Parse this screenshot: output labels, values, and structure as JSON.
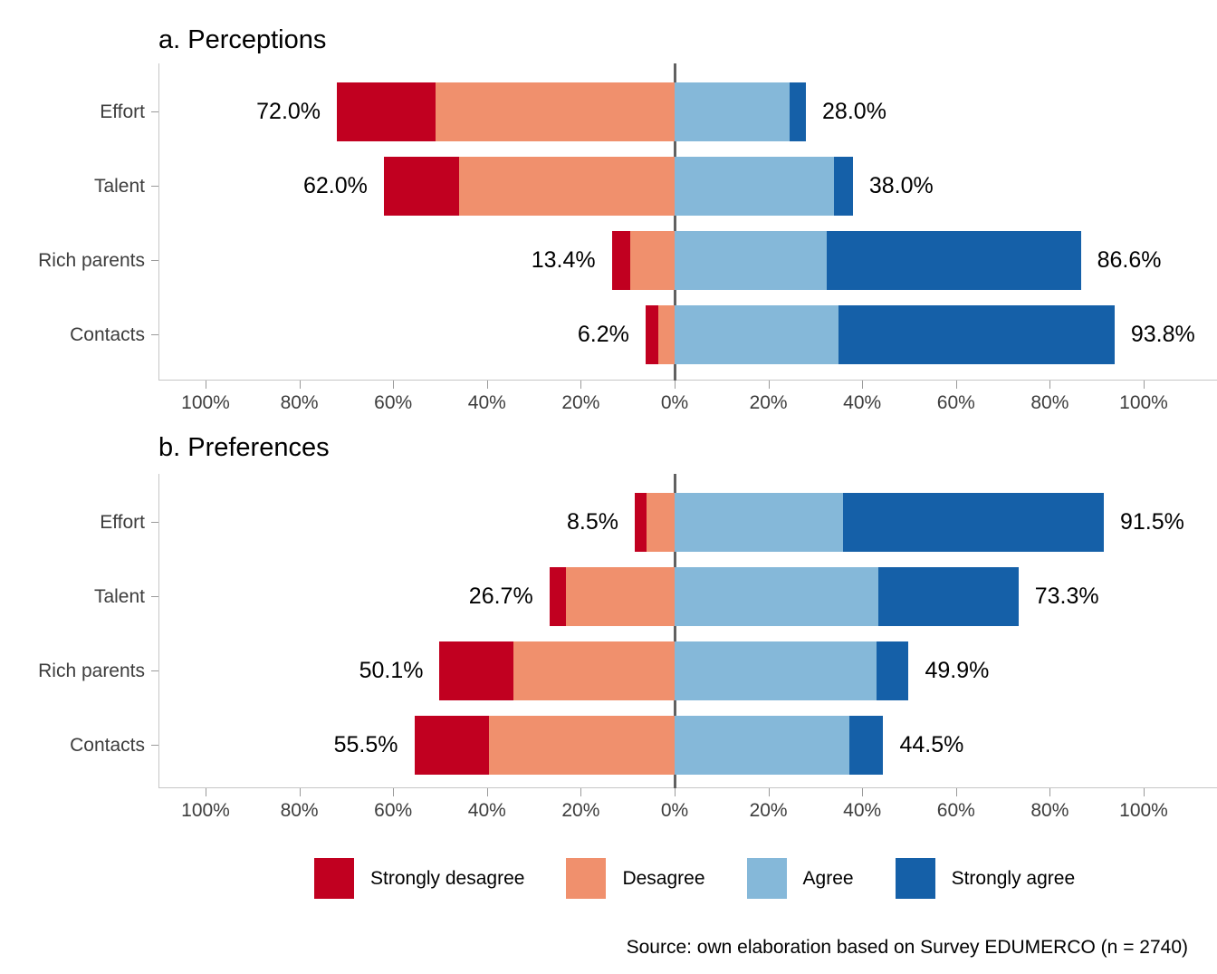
{
  "chart_data": [
    {
      "type": "bar",
      "subtype": "diverging-stacked-likert",
      "title": "a. Perceptions",
      "categories": [
        "Effort",
        "Talent",
        "Rich parents",
        "Contacts"
      ],
      "series": [
        {
          "name": "Strongly desagree",
          "values": [
            21.0,
            16.0,
            3.9,
            2.7
          ]
        },
        {
          "name": "Desagree",
          "values": [
            51.0,
            46.0,
            9.5,
            3.5
          ]
        },
        {
          "name": "Agree",
          "values": [
            24.5,
            34.0,
            32.5,
            35.0
          ]
        },
        {
          "name": "Strongly agree",
          "values": [
            3.5,
            4.0,
            54.1,
            58.8
          ]
        }
      ],
      "totals_left": [
        "72.0%",
        "62.0%",
        "13.4%",
        "6.2%"
      ],
      "totals_right": [
        "28.0%",
        "38.0%",
        "86.6%",
        "93.8%"
      ],
      "xlim": [
        -100,
        100
      ],
      "tick_values": [
        -100,
        -80,
        -60,
        -40,
        -20,
        0,
        20,
        40,
        60,
        80,
        100
      ],
      "tick_labels": [
        "100%",
        "80%",
        "60%",
        "40%",
        "20%",
        "0%",
        "20%",
        "40%",
        "60%",
        "80%",
        "100%"
      ],
      "grid": false
    },
    {
      "type": "bar",
      "subtype": "diverging-stacked-likert",
      "title": "b. Preferences",
      "categories": [
        "Effort",
        "Talent",
        "Rich parents",
        "Contacts"
      ],
      "series": [
        {
          "name": "Strongly desagree",
          "values": [
            2.5,
            3.5,
            15.7,
            16.0
          ]
        },
        {
          "name": "Desagree",
          "values": [
            6.0,
            23.2,
            34.4,
            39.5
          ]
        },
        {
          "name": "Agree",
          "values": [
            36.0,
            43.5,
            43.0,
            37.3
          ]
        },
        {
          "name": "Strongly agree",
          "values": [
            55.5,
            29.8,
            6.9,
            7.2
          ]
        }
      ],
      "totals_left": [
        "8.5%",
        "26.7%",
        "50.1%",
        "55.5%"
      ],
      "totals_right": [
        "91.5%",
        "73.3%",
        "49.9%",
        "44.5%"
      ],
      "xlim": [
        -100,
        100
      ],
      "tick_values": [
        -100,
        -80,
        -60,
        -40,
        -20,
        0,
        20,
        40,
        60,
        80,
        100
      ],
      "tick_labels": [
        "100%",
        "80%",
        "60%",
        "40%",
        "20%",
        "0%",
        "20%",
        "40%",
        "60%",
        "80%",
        "100%"
      ],
      "grid": false
    }
  ],
  "legend": [
    {
      "label": "Strongly desagree",
      "color": "#c10020"
    },
    {
      "label": "Desagree",
      "color": "#f0906d"
    },
    {
      "label": "Agree",
      "color": "#85b8d9"
    },
    {
      "label": "Strongly agree",
      "color": "#1560a8"
    }
  ],
  "colors": {
    "strongly_disagree": "#c10020",
    "disagree": "#f0906d",
    "agree": "#85b8d9",
    "strongly_agree": "#1560a8",
    "zero_line": "#616161",
    "axis_line": "#c6c6c6",
    "tick": "#9a9a9a",
    "text": "#3d3d3d"
  },
  "source": "Source: own elaboration based on Survey EDUMERCO (n = 2740)"
}
